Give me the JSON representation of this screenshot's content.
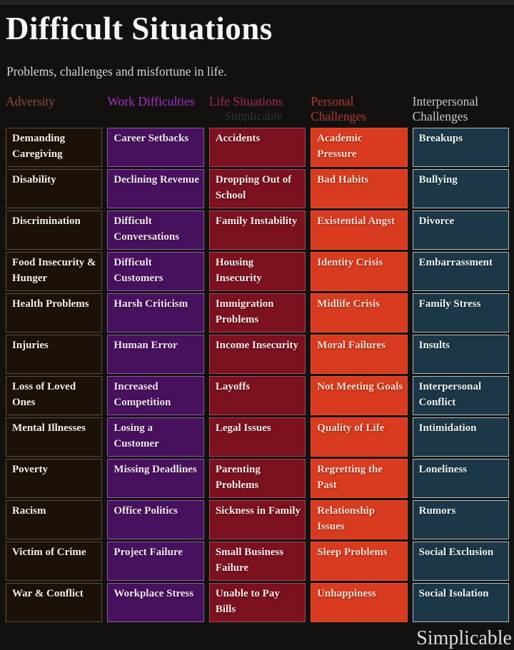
{
  "page": {
    "title": "Difficult Situations",
    "subtitle": "Problems, challenges and misfortune in life.",
    "brand_watermark": "Simplicable",
    "background": "#131110"
  },
  "columns": [
    {
      "header": "Adversity",
      "header_color": "#8f4c38",
      "cell_bg": "#1c1108",
      "cell_border": "#5f4d3a",
      "cell_text": "#f3eee6",
      "items": [
        "Demanding Caregiving",
        "Disability",
        "Discrimination",
        "Food Insecurity & Hunger",
        "Health Problems",
        "Injuries",
        "Loss of Loved Ones",
        "Mental Illnesses",
        "Poverty",
        "Racism",
        "Victim of Crime",
        "War & Conflict"
      ]
    },
    {
      "header": "Work Difficulties",
      "header_color": "#a72fc8",
      "cell_bg": "#48115e",
      "cell_border": "#84619a",
      "cell_text": "#efe5f1",
      "items": [
        "Career Setbacks",
        "Declining Revenue",
        "Difficult Conversations",
        "Difficult Customers",
        "Harsh Criticism",
        "Human Error",
        "Increased Competition",
        "Losing a Customer",
        "Missing Deadlines",
        "Office Politics",
        "Project Failure",
        "Workplace Stress"
      ]
    },
    {
      "header": "Life Situations",
      "header_color": "#a22a58",
      "header_watermark": "Simplicable",
      "header_watermark_color": "#2f3335",
      "cell_bg": "#7c1120",
      "cell_border": "#a04b57",
      "cell_text": "#f5e9e5",
      "items": [
        "Accidents",
        "Dropping Out of School",
        "Family Instability",
        "Housing Insecurity",
        "Immigration Problems",
        "Income Insecurity",
        "Layoffs",
        "Legal Issues",
        "Parenting Problems",
        "Sickness in Family",
        "Small Business Failure",
        "Unable to Pay Bills"
      ]
    },
    {
      "header": "Personal Challenges",
      "header_color": "#b03a30",
      "cell_bg": "#d93b20",
      "cell_border": "#de5330",
      "cell_text": "#f9dcce",
      "items": [
        "Academic Pressure",
        "Bad Habits",
        "Existential Angst",
        "Identity Crisis",
        "Midlife Crisis",
        "Moral Failures",
        "Not Meeting Goals",
        "Quality of Life",
        "Regretting the Past",
        "Relationship Issues",
        "Sleep Problems",
        "Unhappiness"
      ]
    },
    {
      "header": "Interpersonal Challenges",
      "header_color": "#c3ccc7",
      "cell_bg": "#1c3848",
      "cell_border": "#a9bdbe",
      "cell_text": "#ecf2ef",
      "items": [
        "Breakups",
        "Bullying",
        "Divorce",
        "Embarrassment",
        "Family Stress",
        "Insults",
        "Interpersonal Conflict",
        "Intimidation",
        "Loneliness",
        "Rumors",
        "Social Exclusion",
        "Social Isolation"
      ]
    }
  ]
}
